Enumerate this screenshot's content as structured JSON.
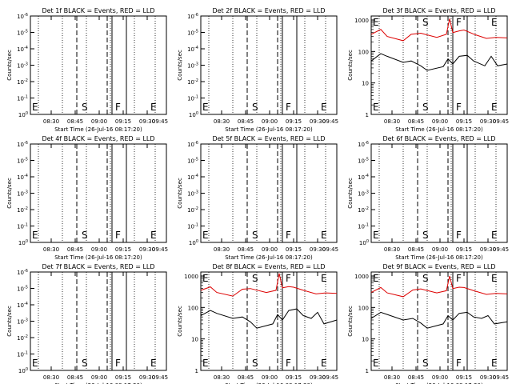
{
  "chart_data": {
    "type": "line",
    "x_tick_labels": [
      "08:30",
      "08:45",
      "09:00",
      "09:15",
      "09:30",
      "09:45"
    ],
    "xlabel": "Start Time (26-Jul-16 08:17:20)",
    "ylabel": "Counts/sec",
    "colors": {
      "events": "#000000",
      "lld": "#dd0000"
    },
    "panels": [
      {
        "title": "Det 1f BLACK = Events, RED = LLD",
        "has_data": false,
        "ytick_labels": [
          "10^0",
          "10^-1",
          "10^-2",
          "10^-3",
          "10^-4",
          "10^-5",
          "10^-6"
        ],
        "markers": [
          "E",
          "S",
          "F",
          "E"
        ],
        "series": []
      },
      {
        "title": "Det 2f BLACK = Events, RED = LLD",
        "has_data": false,
        "ytick_labels": [
          "10^0",
          "10^-1",
          "10^-2",
          "10^-3",
          "10^-4",
          "10^-5",
          "10^-6"
        ],
        "markers": [
          "E",
          "S",
          "F",
          "E"
        ],
        "series": []
      },
      {
        "title": "Det 3f BLACK = Events, RED = LLD",
        "has_data": true,
        "ytick_labels": [
          "1000",
          "100",
          "10",
          "1"
        ],
        "ylim": [
          1,
          1000
        ],
        "markers": [
          "E",
          "S",
          "F",
          "E"
        ],
        "series": [
          {
            "values": [
              [
                0,
                350
              ],
              [
                6,
                500
              ],
              [
                10,
                300
              ],
              [
                20,
                220
              ],
              [
                25,
                350
              ],
              [
                31,
                380
              ],
              [
                41,
                280
              ],
              [
                47,
                350
              ],
              [
                49,
                1100
              ],
              [
                51,
                400
              ],
              [
                55,
                450
              ],
              [
                58,
                480
              ],
              [
                65,
                340
              ],
              [
                72,
                260
              ],
              [
                78,
                280
              ],
              [
                85,
                270
              ]
            ]
          },
          {
            "values": [
              [
                0,
                50
              ],
              [
                6,
                85
              ],
              [
                10,
                70
              ],
              [
                20,
                45
              ],
              [
                25,
                50
              ],
              [
                31,
                35
              ],
              [
                35,
                25
              ],
              [
                45,
                33
              ],
              [
                48,
                58
              ],
              [
                51,
                40
              ],
              [
                55,
                70
              ],
              [
                60,
                75
              ],
              [
                64,
                50
              ],
              [
                71,
                35
              ],
              [
                75,
                70
              ],
              [
                79,
                35
              ],
              [
                85,
                40
              ]
            ]
          }
        ]
      },
      {
        "title": "Det 4f BLACK = Events, RED = LLD",
        "has_data": false,
        "ytick_labels": [
          "10^0",
          "10^-1",
          "10^-2",
          "10^-3",
          "10^-4",
          "10^-5",
          "10^-6"
        ],
        "markers": [
          "E",
          "S",
          "F",
          "E"
        ],
        "series": []
      },
      {
        "title": "Det 5f BLACK = Events, RED = LLD",
        "has_data": false,
        "ytick_labels": [
          "10^0",
          "10^-1",
          "10^-2",
          "10^-3",
          "10^-4",
          "10^-5",
          "10^-6"
        ],
        "markers": [
          "E",
          "S",
          "F",
          "E"
        ],
        "series": []
      },
      {
        "title": "Det 6f BLACK = Events, RED = LLD",
        "has_data": false,
        "ytick_labels": [
          "10^0",
          "10^-1",
          "10^-2",
          "10^-3",
          "10^-4",
          "10^-5",
          "10^-6"
        ],
        "markers": [
          "E",
          "S",
          "F",
          "E"
        ],
        "series": []
      },
      {
        "title": "Det 7f BLACK = Events, RED = LLD",
        "has_data": false,
        "ytick_labels": [
          "10^0",
          "10^-1",
          "10^-2",
          "10^-3",
          "10^-4",
          "10^-5",
          "10^-6"
        ],
        "markers": [
          "E",
          "S",
          "F",
          "E"
        ],
        "series": []
      },
      {
        "title": "Det 8f BLACK = Events, RED = LLD",
        "has_data": true,
        "ytick_labels": [
          "1000",
          "100",
          "10",
          "1"
        ],
        "ylim": [
          1,
          1000
        ],
        "markers": [
          "E",
          "S",
          "F",
          "E"
        ],
        "series": [
          {
            "values": [
              [
                0,
                350
              ],
              [
                6,
                450
              ],
              [
                10,
                300
              ],
              [
                20,
                230
              ],
              [
                26,
                380
              ],
              [
                31,
                400
              ],
              [
                41,
                300
              ],
              [
                47,
                350
              ],
              [
                49,
                1200
              ],
              [
                51,
                420
              ],
              [
                55,
                460
              ],
              [
                58,
                440
              ],
              [
                65,
                340
              ],
              [
                72,
                270
              ],
              [
                78,
                290
              ],
              [
                85,
                280
              ]
            ]
          },
          {
            "values": [
              [
                0,
                55
              ],
              [
                6,
                80
              ],
              [
                10,
                65
              ],
              [
                20,
                45
              ],
              [
                26,
                50
              ],
              [
                31,
                35
              ],
              [
                35,
                22
              ],
              [
                45,
                30
              ],
              [
                48,
                60
              ],
              [
                51,
                40
              ],
              [
                55,
                80
              ],
              [
                60,
                90
              ],
              [
                64,
                55
              ],
              [
                69,
                45
              ],
              [
                73,
                70
              ],
              [
                77,
                30
              ],
              [
                85,
                40
              ]
            ]
          }
        ]
      },
      {
        "title": "Det 9f BLACK = Events, RED = LLD",
        "has_data": true,
        "ytick_labels": [
          "1000",
          "100",
          "10",
          "1"
        ],
        "ylim": [
          1,
          1000
        ],
        "markers": [
          "E",
          "S",
          "F",
          "E"
        ],
        "series": [
          {
            "values": [
              [
                0,
                300
              ],
              [
                6,
                430
              ],
              [
                10,
                290
              ],
              [
                20,
                220
              ],
              [
                26,
                360
              ],
              [
                31,
                390
              ],
              [
                41,
                290
              ],
              [
                47,
                340
              ],
              [
                49,
                1000
              ],
              [
                51,
                400
              ],
              [
                55,
                440
              ],
              [
                58,
                430
              ],
              [
                65,
                330
              ],
              [
                72,
                260
              ],
              [
                78,
                280
              ],
              [
                85,
                270
              ]
            ]
          },
          {
            "values": [
              [
                0,
                45
              ],
              [
                6,
                70
              ],
              [
                10,
                60
              ],
              [
                20,
                40
              ],
              [
                26,
                45
              ],
              [
                31,
                32
              ],
              [
                35,
                22
              ],
              [
                45,
                30
              ],
              [
                48,
                55
              ],
              [
                51,
                40
              ],
              [
                55,
                65
              ],
              [
                60,
                70
              ],
              [
                64,
                50
              ],
              [
                69,
                45
              ],
              [
                73,
                55
              ],
              [
                77,
                30
              ],
              [
                85,
                35
              ]
            ]
          }
        ]
      }
    ]
  }
}
